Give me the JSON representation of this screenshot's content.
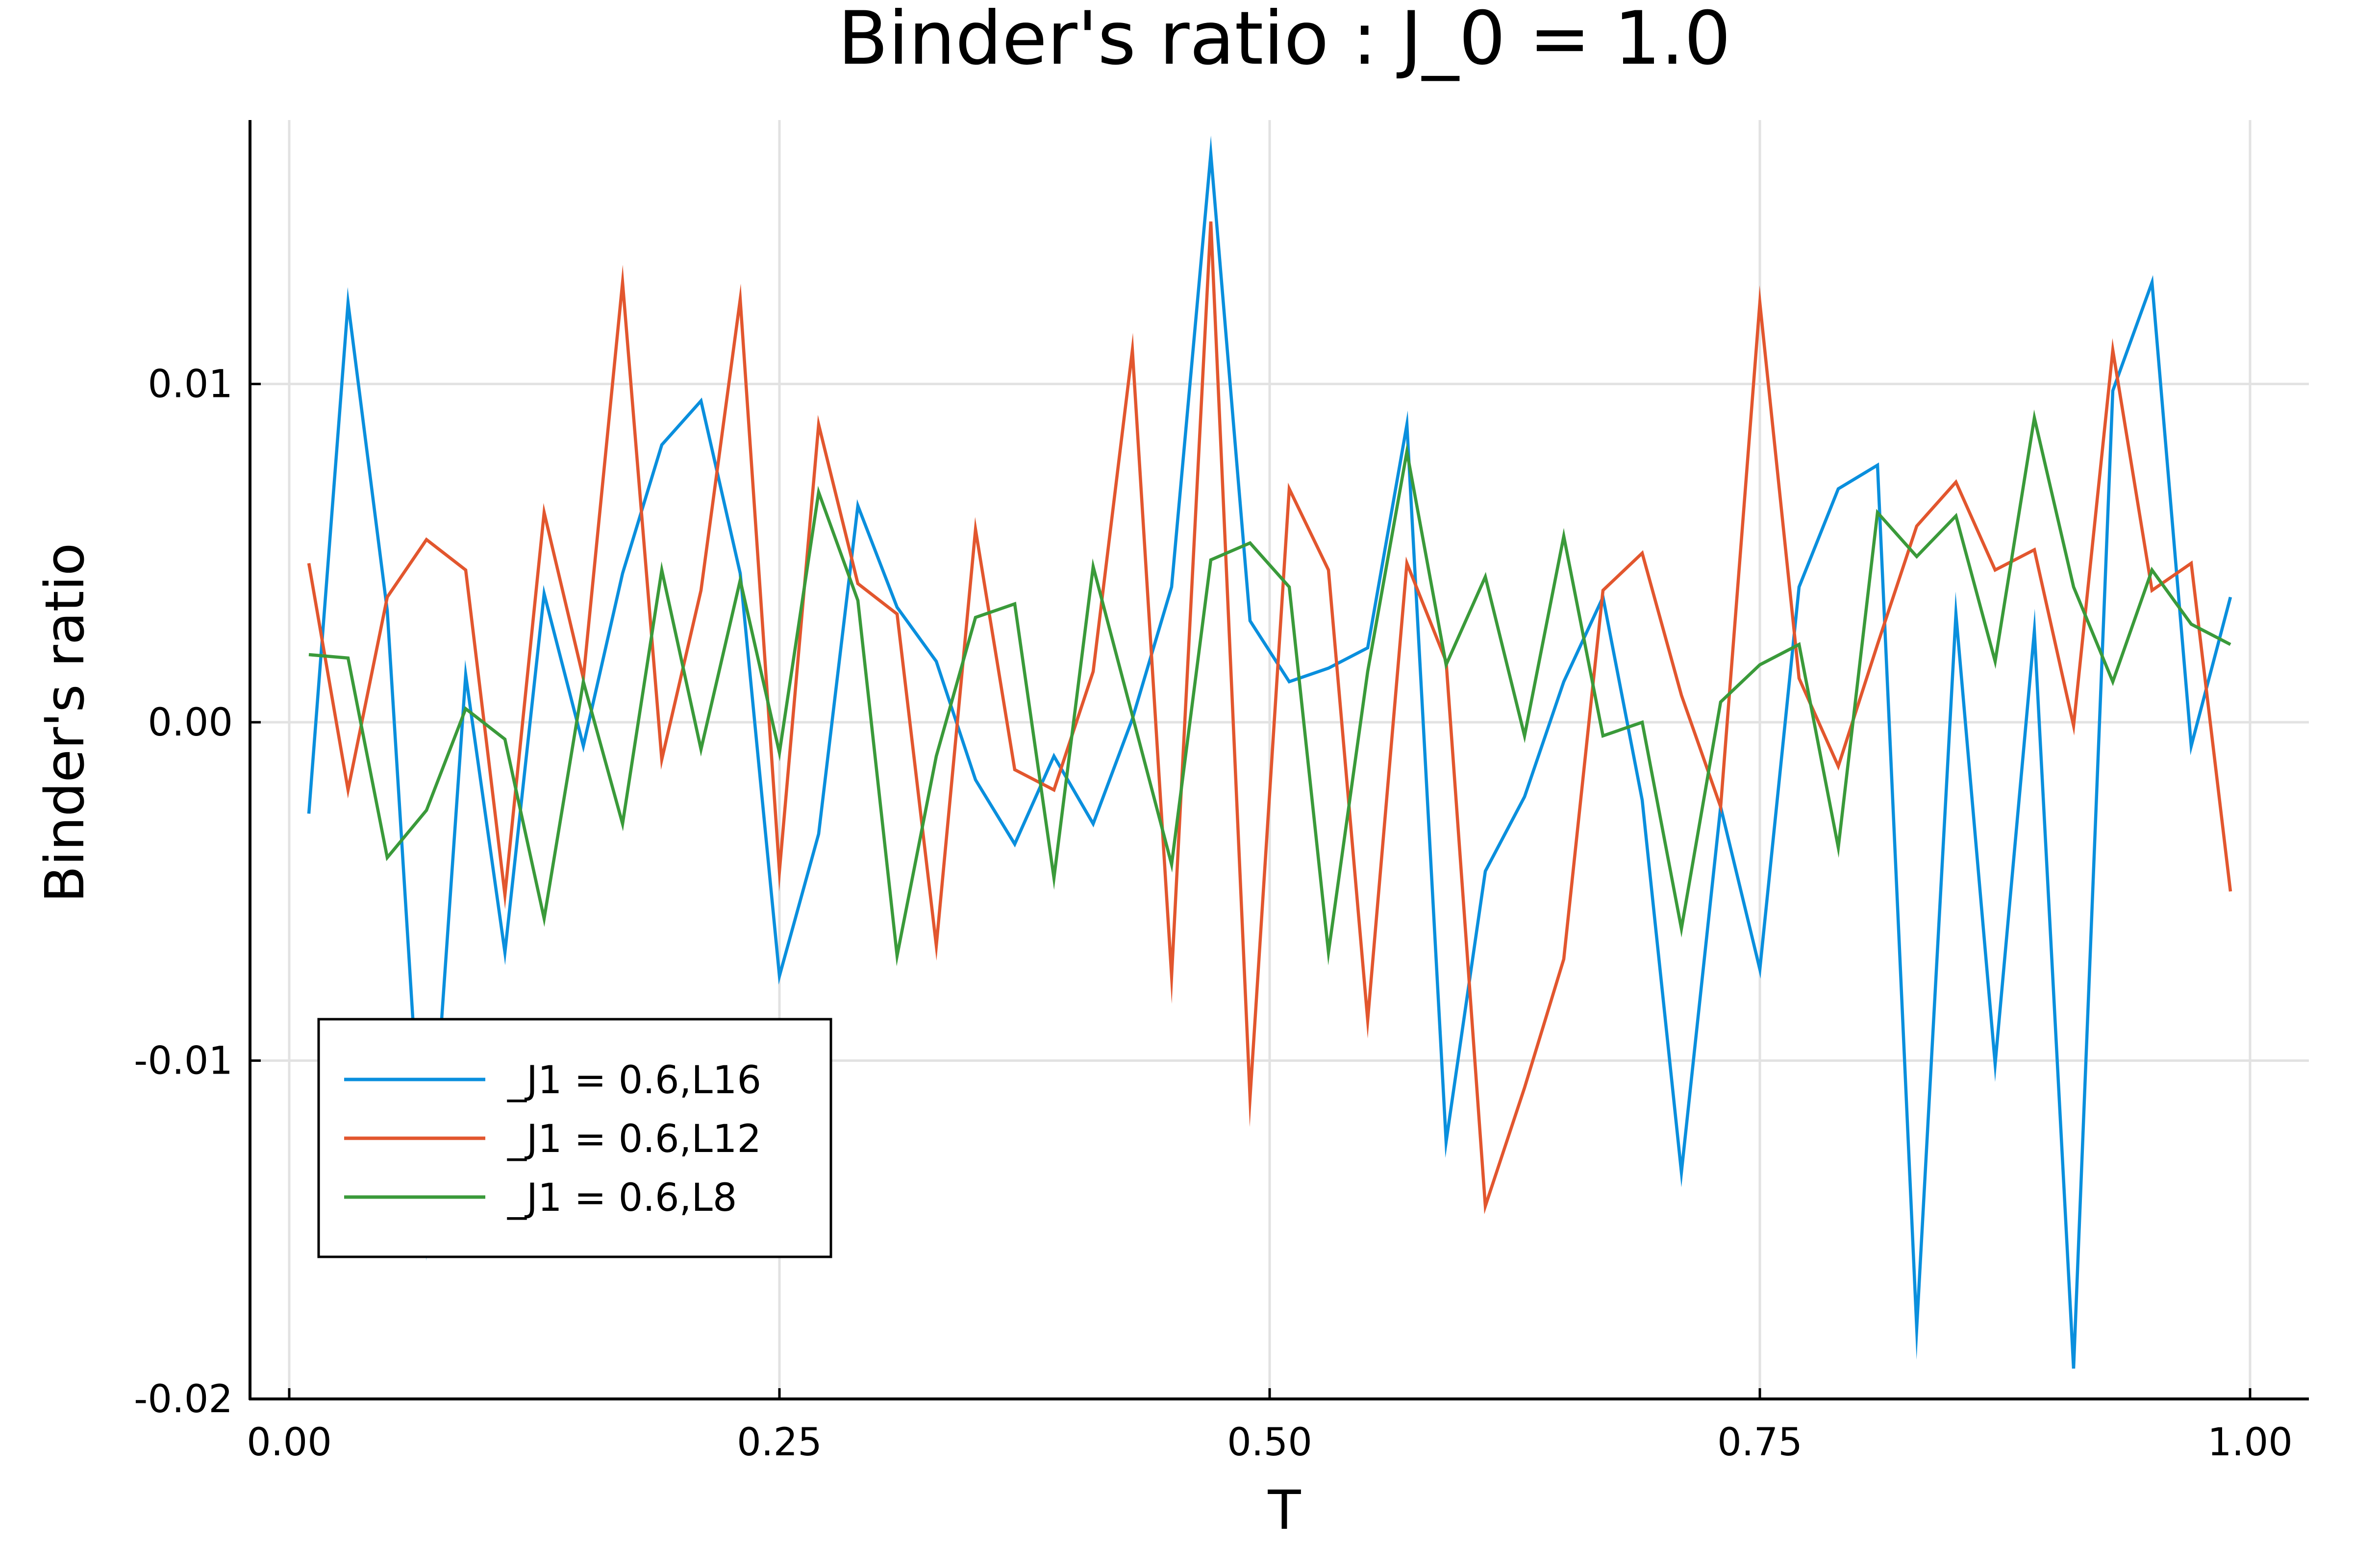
{
  "chart_data": {
    "type": "line",
    "title": "Binder's ratio : J_0 = 1.0",
    "xlabel": "T",
    "ylabel": "Binder's ratio",
    "xlim": [
      -0.02,
      1.03
    ],
    "ylim": [
      -0.02,
      0.0178
    ],
    "xticks": [
      0.0,
      0.25,
      0.5,
      0.75,
      1.0
    ],
    "xtick_labels": [
      "0.00",
      "0.25",
      "0.50",
      "0.75",
      "1.00"
    ],
    "yticks": [
      -0.02,
      -0.01,
      0.0,
      0.01
    ],
    "ytick_labels": [
      "-0.02",
      "-0.01",
      "0.00",
      "0.01"
    ],
    "grid": true,
    "legend_position": "bottom-left",
    "x": [
      0.01,
      0.03,
      0.05,
      0.07,
      0.09,
      0.11,
      0.13,
      0.15,
      0.17,
      0.19,
      0.21,
      0.23,
      0.25,
      0.27,
      0.29,
      0.31,
      0.33,
      0.35,
      0.37,
      0.39,
      0.41,
      0.43,
      0.45,
      0.47,
      0.49,
      0.51,
      0.53,
      0.55,
      0.57,
      0.59,
      0.61,
      0.63,
      0.65,
      0.67,
      0.69,
      0.71,
      0.73,
      0.75,
      0.77,
      0.79,
      0.81,
      0.83,
      0.85,
      0.87,
      0.89,
      0.91,
      0.93,
      0.95,
      0.97,
      0.99
    ],
    "series": [
      {
        "name": "_J1 = 0.6,L16",
        "color": "#0a8fdd",
        "values": [
          -0.0027,
          0.0124,
          0.0033,
          -0.0152,
          0.0014,
          -0.0068,
          0.0038,
          -0.0007,
          0.0044,
          0.0082,
          0.0095,
          0.0044,
          -0.0075,
          -0.0033,
          0.0064,
          0.0034,
          0.0018,
          -0.0017,
          -0.0036,
          -0.001,
          -0.003,
          0.0001,
          0.004,
          0.0168,
          0.003,
          0.0012,
          0.0016,
          0.0022,
          0.0088,
          -0.0124,
          -0.0044,
          -0.0022,
          0.0012,
          0.0037,
          -0.0023,
          -0.0133,
          -0.0025,
          -0.0073,
          0.004,
          0.0069,
          0.0076,
          -0.0179,
          0.0032,
          -0.0101,
          0.0027,
          -0.0191,
          0.0098,
          0.013,
          -0.0007,
          0.0037
        ]
      },
      {
        "name": "_J1 = 0.6,L12",
        "color": "#e2562e",
        "values": [
          0.0047,
          -0.002,
          0.0037,
          0.0054,
          0.0045,
          -0.0051,
          0.0062,
          0.0013,
          0.013,
          -0.0011,
          0.0039,
          0.0125,
          -0.0044,
          0.0088,
          0.0041,
          0.0032,
          -0.0066,
          0.0057,
          -0.0014,
          -0.002,
          0.0015,
          0.011,
          -0.0075,
          0.0148,
          -0.0111,
          0.0069,
          0.0045,
          -0.0088,
          0.0047,
          0.0018,
          -0.0143,
          -0.0108,
          -0.007,
          0.0039,
          0.005,
          0.0008,
          -0.0025,
          0.0124,
          0.0013,
          -0.0013,
          0.0023,
          0.0058,
          0.0071,
          0.0045,
          0.0051,
          -0.0001,
          0.011,
          0.0039,
          0.0047,
          -0.005
        ]
      },
      {
        "name": "_J1 = 0.6,L8",
        "color": "#3a9a3a",
        "values": [
          0.002,
          0.0019,
          -0.004,
          -0.0026,
          0.0004,
          -0.0005,
          -0.0058,
          0.0012,
          -0.003,
          0.0045,
          -0.0008,
          0.0042,
          -0.0009,
          0.0068,
          0.0036,
          -0.0069,
          -0.001,
          0.0031,
          0.0035,
          -0.0046,
          0.0046,
          0.0002,
          -0.0042,
          0.0048,
          0.0053,
          0.004,
          -0.0068,
          0.0015,
          0.008,
          0.0017,
          0.0043,
          -0.0004,
          0.0055,
          -0.0004,
          0.0,
          -0.0061,
          0.0006,
          0.0017,
          0.0023,
          -0.0037,
          0.0062,
          0.0049,
          0.0061,
          0.0018,
          0.009,
          0.004,
          0.0012,
          0.0045,
          0.0029,
          0.0023
        ]
      }
    ]
  }
}
